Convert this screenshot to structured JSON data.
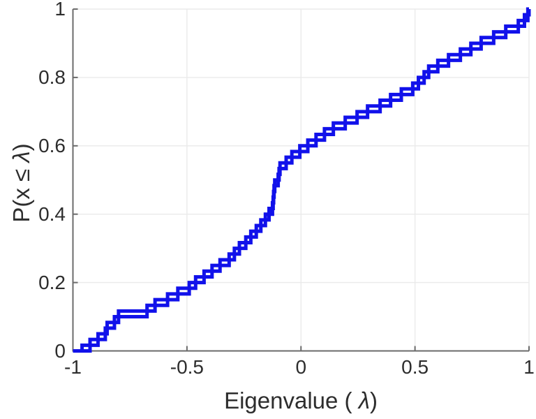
{
  "chart_data": {
    "type": "line",
    "subtype": "empirical-cdf-double-stairs",
    "title": "",
    "xlabel": {
      "pre": "Eigenvalue ( ",
      "lambda": "λ",
      "post": ")"
    },
    "ylabel": {
      "pre": "P(x ",
      "leq": "≤",
      "sep": " ",
      "lambda": "λ",
      "post": ")"
    },
    "xlim": [
      -1,
      1
    ],
    "ylim": [
      0,
      1
    ],
    "grid": true,
    "legend": "none",
    "xticks": {
      "values": [
        -1,
        -0.5,
        0,
        0.5,
        1
      ],
      "labels": [
        "-1",
        "-0.5",
        "0",
        "0.5",
        "1"
      ]
    },
    "yticks": {
      "values": [
        0,
        0.2,
        0.4,
        0.6,
        0.8,
        1
      ],
      "labels": [
        "0",
        "0.2",
        "0.4",
        "0.6",
        "0.8",
        "1"
      ]
    },
    "n_samples": 60,
    "step_size": 0.0167,
    "eigenvalues": [
      -0.96,
      -0.925,
      -0.89,
      -0.858,
      -0.85,
      -0.818,
      -0.8,
      -0.675,
      -0.64,
      -0.585,
      -0.54,
      -0.49,
      -0.462,
      -0.425,
      -0.39,
      -0.355,
      -0.315,
      -0.292,
      -0.27,
      -0.242,
      -0.22,
      -0.196,
      -0.176,
      -0.156,
      -0.14,
      -0.125,
      -0.122,
      -0.12,
      -0.118,
      -0.115,
      -0.1,
      -0.096,
      -0.092,
      -0.065,
      -0.04,
      -0.005,
      0.03,
      0.066,
      0.103,
      0.142,
      0.194,
      0.246,
      0.292,
      0.347,
      0.393,
      0.44,
      0.49,
      0.515,
      0.54,
      0.56,
      0.6,
      0.647,
      0.699,
      0.745,
      0.79,
      0.845,
      0.898,
      0.953,
      0.98,
      0.995
    ],
    "colors": {
      "line": "#1111ea",
      "axis": "#6b6b6b",
      "grid": "#eaeaea",
      "text": "#2d2d2d",
      "background": "#ffffff"
    }
  }
}
